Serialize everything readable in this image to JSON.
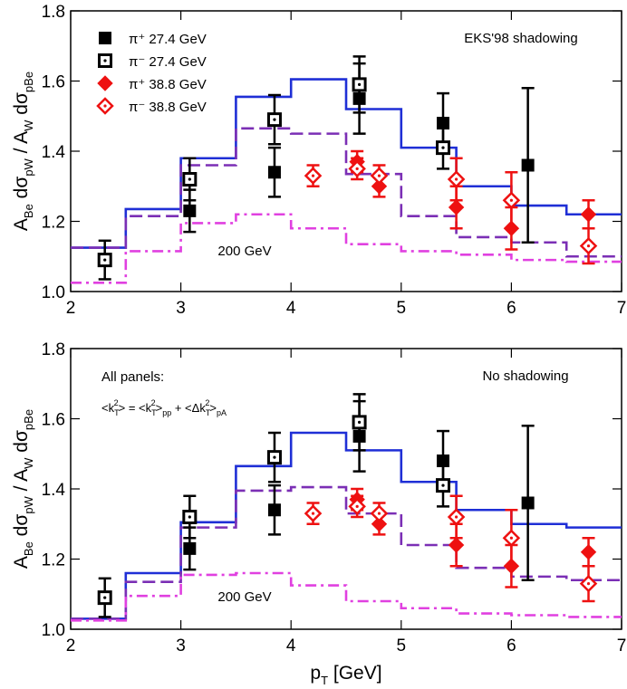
{
  "chart_data": [
    {
      "type": "step_scatter",
      "ylabel": [
        "A",
        "Be",
        " dσ",
        "pW",
        " / A",
        "W",
        " dσ",
        "pBe"
      ],
      "annotations": [
        "EKS'98 shadowing",
        "200 GeV"
      ],
      "xlim": [
        2,
        7
      ],
      "ylim": [
        1.0,
        1.8
      ],
      "xticks": [
        2,
        3,
        4,
        5,
        6,
        7
      ],
      "yticks": [
        {
          "value": 1.0,
          "label": "1.0"
        },
        {
          "value": 1.2,
          "label": "1.2"
        },
        {
          "value": 1.4,
          "label": "1.4"
        },
        {
          "value": 1.6,
          "label": "1.6"
        },
        {
          "value": 1.8,
          "label": "1.8"
        }
      ],
      "legend": "upper left",
      "bins": [
        2,
        2.5,
        3,
        3.5,
        4,
        4.5,
        5,
        5.5,
        6,
        6.5,
        7
      ],
      "curves": [
        {
          "color": "#1f2fd6",
          "style": "solid",
          "values": [
            1.125,
            1.235,
            1.38,
            1.555,
            1.605,
            1.52,
            1.41,
            1.3,
            1.245,
            1.22
          ]
        },
        {
          "color": "#7b2fb5",
          "style": "dashed",
          "values": [
            1.125,
            1.215,
            1.36,
            1.465,
            1.45,
            1.335,
            1.215,
            1.155,
            1.14,
            1.1
          ]
        },
        {
          "color": "#e040e0",
          "style": "dashdot",
          "values": [
            1.025,
            1.115,
            1.195,
            1.22,
            1.18,
            1.135,
            1.115,
            1.105,
            1.09,
            1.085
          ]
        }
      ],
      "series": [
        {
          "name": "π⁺ 27.4 GeV",
          "color": "#000000",
          "marker": "square-filled",
          "x": [
            3.08,
            3.85,
            4.62,
            5.38,
            6.15
          ],
          "values": [
            1.23,
            1.34,
            1.55,
            1.48,
            1.36
          ],
          "errors": [
            0.06,
            0.07,
            0.1,
            0.085,
            0.22
          ]
        },
        {
          "name": "π⁻ 27.4 GeV",
          "color": "#000000",
          "marker": "square-open",
          "x": [
            2.31,
            3.08,
            3.85,
            4.62,
            5.38
          ],
          "values": [
            1.09,
            1.32,
            1.49,
            1.59,
            1.41
          ],
          "errors": [
            0.055,
            0.06,
            0.07,
            0.08,
            0.06
          ]
        },
        {
          "name": "π⁺ 38.8 GeV",
          "color": "#ee1111",
          "marker": "diamond-filled",
          "x": [
            4.6,
            4.8,
            5.5,
            6.0,
            6.7
          ],
          "values": [
            1.37,
            1.3,
            1.24,
            1.18,
            1.22
          ],
          "errors": [
            0.03,
            0.03,
            0.06,
            0.06,
            0.04
          ]
        },
        {
          "name": "π⁻ 38.8 GeV",
          "color": "#ee1111",
          "marker": "diamond-open",
          "x": [
            4.2,
            4.6,
            4.8,
            5.5,
            6.0,
            6.7
          ],
          "values": [
            1.33,
            1.35,
            1.33,
            1.32,
            1.26,
            1.13
          ],
          "errors": [
            0.03,
            0.03,
            0.03,
            0.06,
            0.08,
            0.05
          ]
        }
      ]
    },
    {
      "type": "step_scatter",
      "ylabel": [
        "A",
        "Be",
        " dσ",
        "pW",
        " / A",
        "W",
        " dσ",
        "pBe"
      ],
      "xlabel": [
        "p",
        "T",
        " [GeV]"
      ],
      "annotations": [
        "No shadowing",
        "200 GeV",
        "All panels:"
      ],
      "formula": [
        "<k",
        "T",
        "2",
        "> = <k",
        "T",
        "2",
        ">",
        "pp",
        " + <Δk",
        "T",
        "2",
        ">",
        "pA"
      ],
      "xlim": [
        2,
        7
      ],
      "ylim": [
        1.0,
        1.8
      ],
      "xticks": [
        2,
        3,
        4,
        5,
        6,
        7
      ],
      "yticks": [
        {
          "value": 1.0,
          "label": "1.0"
        },
        {
          "value": 1.2,
          "label": "1.2"
        },
        {
          "value": 1.4,
          "label": "1.4"
        },
        {
          "value": 1.6,
          "label": "1.6"
        },
        {
          "value": 1.8,
          "label": "1.8"
        }
      ],
      "bins": [
        2,
        2.5,
        3,
        3.5,
        4,
        4.5,
        5,
        5.5,
        6,
        6.5,
        7
      ],
      "curves": [
        {
          "color": "#1f2fd6",
          "style": "solid",
          "values": [
            1.03,
            1.16,
            1.305,
            1.465,
            1.56,
            1.51,
            1.42,
            1.34,
            1.3,
            1.29
          ]
        },
        {
          "color": "#7b2fb5",
          "style": "dashed",
          "values": [
            1.03,
            1.135,
            1.29,
            1.395,
            1.405,
            1.33,
            1.24,
            1.175,
            1.15,
            1.14
          ]
        },
        {
          "color": "#e040e0",
          "style": "dashdot",
          "values": [
            1.025,
            1.095,
            1.155,
            1.16,
            1.125,
            1.08,
            1.06,
            1.045,
            1.04,
            1.035
          ]
        }
      ],
      "series": [
        {
          "color": "#000000",
          "marker": "square-filled",
          "x": [
            3.08,
            3.85,
            4.62,
            5.38,
            6.15
          ],
          "values": [
            1.23,
            1.34,
            1.55,
            1.48,
            1.36
          ],
          "errors": [
            0.06,
            0.07,
            0.1,
            0.085,
            0.22
          ]
        },
        {
          "color": "#000000",
          "marker": "square-open",
          "x": [
            2.31,
            3.08,
            3.85,
            4.62,
            5.38
          ],
          "values": [
            1.09,
            1.32,
            1.49,
            1.59,
            1.41
          ],
          "errors": [
            0.055,
            0.06,
            0.07,
            0.08,
            0.06
          ]
        },
        {
          "color": "#ee1111",
          "marker": "diamond-filled",
          "x": [
            4.6,
            4.8,
            5.5,
            6.0,
            6.7
          ],
          "values": [
            1.37,
            1.3,
            1.24,
            1.18,
            1.22
          ],
          "errors": [
            0.03,
            0.03,
            0.06,
            0.06,
            0.04
          ]
        },
        {
          "color": "#ee1111",
          "marker": "diamond-open",
          "x": [
            4.2,
            4.6,
            4.8,
            5.5,
            6.0,
            6.7
          ],
          "values": [
            1.33,
            1.35,
            1.33,
            1.32,
            1.26,
            1.13
          ],
          "errors": [
            0.03,
            0.03,
            0.03,
            0.06,
            0.08,
            0.05
          ]
        }
      ]
    }
  ]
}
